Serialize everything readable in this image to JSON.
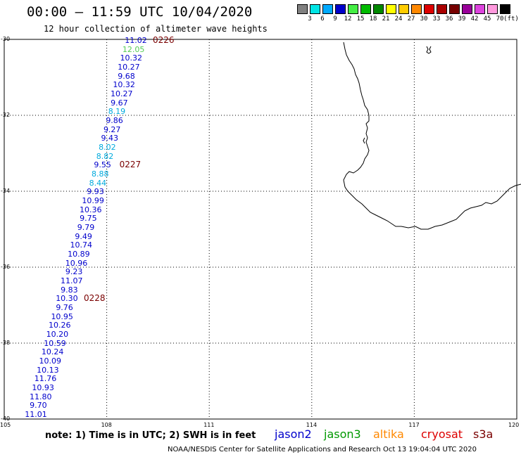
{
  "title": "00:00 – 11:59 UTC 10/04/2020",
  "subtitle": "12 hour collection of altimeter wave heights",
  "colorbar": {
    "colors": [
      "#808080",
      "#00e5e5",
      "#00aaff",
      "#0000cc",
      "#44ee44",
      "#00bb00",
      "#008800",
      "#ffff00",
      "#ffcc00",
      "#ff8800",
      "#dd0000",
      "#aa0000",
      "#770000",
      "#990099",
      "#dd44dd",
      "#ff99dd",
      "#000000"
    ],
    "labels": [
      "3",
      "6",
      "9",
      "12",
      "15",
      "18",
      "21",
      "24",
      "27",
      "30",
      "33",
      "36",
      "39",
      "42",
      "45",
      "70",
      "(ft)"
    ]
  },
  "axes": {
    "lat_labels": [
      "-30",
      "-32",
      "-34",
      "-36",
      "-38",
      "-40"
    ],
    "lon_labels": [
      "105",
      "108",
      "111",
      "114",
      "117",
      "120"
    ]
  },
  "swh_colors": {
    "dark_blue": "#0000cc",
    "cyan": "#00aadd",
    "green": "#55cc55",
    "track_label": "#7a0000"
  },
  "swh_points": [
    {
      "v": "11.02",
      "c": "dark_blue"
    },
    {
      "v": "12.05",
      "c": "green"
    },
    {
      "v": "10.32",
      "c": "dark_blue"
    },
    {
      "v": "10.27",
      "c": "dark_blue"
    },
    {
      "v": "9.68",
      "c": "dark_blue"
    },
    {
      "v": "10.32",
      "c": "dark_blue"
    },
    {
      "v": "10.27",
      "c": "dark_blue"
    },
    {
      "v": "9.67",
      "c": "dark_blue"
    },
    {
      "v": "8.19",
      "c": "cyan"
    },
    {
      "v": "9.86",
      "c": "dark_blue"
    },
    {
      "v": "9.27",
      "c": "dark_blue"
    },
    {
      "v": "9.43",
      "c": "dark_blue"
    },
    {
      "v": "8.02",
      "c": "cyan"
    },
    {
      "v": "8.82",
      "c": "cyan"
    },
    {
      "v": "9.55",
      "c": "dark_blue"
    },
    {
      "v": "8.88",
      "c": "cyan"
    },
    {
      "v": "8.44",
      "c": "cyan"
    },
    {
      "v": "9.93",
      "c": "dark_blue"
    },
    {
      "v": "10.99",
      "c": "dark_blue"
    },
    {
      "v": "10.36",
      "c": "dark_blue"
    },
    {
      "v": "9.75",
      "c": "dark_blue"
    },
    {
      "v": "9.79",
      "c": "dark_blue"
    },
    {
      "v": "9.49",
      "c": "dark_blue"
    },
    {
      "v": "10.74",
      "c": "dark_blue"
    },
    {
      "v": "10.89",
      "c": "dark_blue"
    },
    {
      "v": "10.96",
      "c": "dark_blue"
    },
    {
      "v": "9.23",
      "c": "dark_blue"
    },
    {
      "v": "11.07",
      "c": "dark_blue"
    },
    {
      "v": "9.83",
      "c": "dark_blue"
    },
    {
      "v": "10.30",
      "c": "dark_blue"
    },
    {
      "v": "9.76",
      "c": "dark_blue"
    },
    {
      "v": "10.95",
      "c": "dark_blue"
    },
    {
      "v": "10.26",
      "c": "dark_blue"
    },
    {
      "v": "10.20",
      "c": "dark_blue"
    },
    {
      "v": "10.59",
      "c": "dark_blue"
    },
    {
      "v": "10.24",
      "c": "dark_blue"
    },
    {
      "v": "10.09",
      "c": "dark_blue"
    },
    {
      "v": "10.13",
      "c": "dark_blue"
    },
    {
      "v": "11.76",
      "c": "dark_blue"
    },
    {
      "v": "10.93",
      "c": "dark_blue"
    },
    {
      "v": "11.80",
      "c": "dark_blue"
    },
    {
      "v": "9.70",
      "c": "dark_blue"
    },
    {
      "v": "11.01",
      "c": "dark_blue"
    }
  ],
  "time_labels": [
    {
      "text": "0226",
      "after_index": 0
    },
    {
      "text": "0227",
      "after_index": 14
    },
    {
      "text": "0228",
      "after_index": 29
    }
  ],
  "note": "note: 1) Time is in UTC; 2) SWH is in feet",
  "satellites": [
    {
      "name": "jason2",
      "color": "#0000cc"
    },
    {
      "name": "jason3",
      "color": "#009900"
    },
    {
      "name": "altika",
      "color": "#ff8800"
    },
    {
      "name": "cryosat",
      "color": "#dd0000"
    },
    {
      "name": "s3a",
      "color": "#7a0000"
    }
  ],
  "footer": "NOAA/NESDIS Center for Satellite Applications and Research   Oct 13 19:04:04 UTC 2020"
}
